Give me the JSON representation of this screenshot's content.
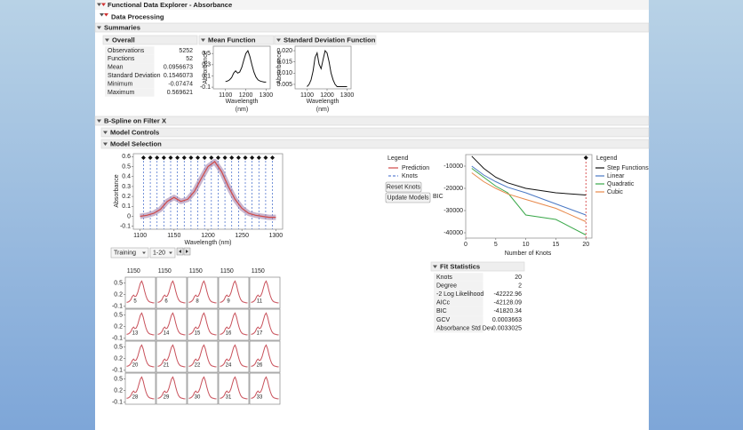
{
  "header": {
    "title": "Functional Data Explorer - Absorbance",
    "data_processing": "Data Processing",
    "summaries": "Summaries",
    "bspline": "B-Spline on Filter X",
    "model_controls": "Model Controls",
    "model_selection": "Model Selection"
  },
  "overall": {
    "title": "Overall",
    "rows": [
      {
        "label": "Observations",
        "value": 5252
      },
      {
        "label": "Functions",
        "value": 52
      },
      {
        "label": "Mean",
        "value": 0.0956673
      },
      {
        "label": "Standard Deviation",
        "value": 0.1546073
      },
      {
        "label": "Minimum",
        "value": -0.07474
      },
      {
        "label": "Maximum",
        "value": 0.569621
      }
    ]
  },
  "mean_function": {
    "title": "Mean Function",
    "y_label": "Absorbance",
    "x_label": "Wavelength",
    "x_unit": "(nm)",
    "xlim": [
      1040,
      1320
    ],
    "ylim": [
      -0.13,
      0.63
    ],
    "xticks": [
      1100,
      1200,
      1300
    ],
    "yticks": [
      -0.1,
      0.1,
      0.3,
      0.5
    ],
    "x": [
      1100,
      1110,
      1120,
      1130,
      1140,
      1150,
      1160,
      1170,
      1180,
      1190,
      1200,
      1210,
      1220,
      1230,
      1240,
      1250,
      1260,
      1270,
      1280,
      1290,
      1300
    ],
    "y": [
      0.0,
      0.01,
      0.03,
      0.07,
      0.15,
      0.19,
      0.15,
      0.17,
      0.25,
      0.38,
      0.5,
      0.55,
      0.45,
      0.3,
      0.17,
      0.08,
      0.03,
      0.01,
      0.0,
      -0.01,
      -0.01
    ]
  },
  "sd_function": {
    "title": "Standard Deviation Function",
    "y_label": "Absorbance",
    "x_label": "Wavelength",
    "x_unit": "(nm)",
    "xlim": [
      1040,
      1320
    ],
    "ylim": [
      0.003,
      0.022
    ],
    "xticks": [
      1100,
      1200,
      1300
    ],
    "yticks": [
      {
        "value": 0.005,
        "label": "0.005"
      },
      {
        "value": 0.01,
        "label": "0.010"
      },
      {
        "value": 0.015,
        "label": "0.015"
      },
      {
        "value": 0.02,
        "label": "0.020"
      }
    ],
    "x": [
      1100,
      1110,
      1120,
      1130,
      1140,
      1150,
      1160,
      1170,
      1180,
      1190,
      1200,
      1210,
      1220,
      1230,
      1240,
      1250,
      1260,
      1270,
      1280,
      1290,
      1300
    ],
    "y": [
      0.004,
      0.005,
      0.007,
      0.011,
      0.017,
      0.019,
      0.014,
      0.012,
      0.016,
      0.02,
      0.019,
      0.015,
      0.01,
      0.007,
      0.005,
      0.004,
      0.004,
      0.004,
      0.004,
      0.004,
      0.004
    ]
  },
  "model_chart": {
    "y_label": "Absorbance",
    "x_label": "Wavelength (nm)",
    "xlim": [
      1090,
      1310
    ],
    "ylim": [
      -0.13,
      0.63
    ],
    "xticks": [
      1100,
      1150,
      1200,
      1250,
      1300
    ],
    "yticks": [
      -0.1,
      0,
      0.1,
      0.2,
      0.3,
      0.4,
      0.5,
      0.6
    ],
    "knots": [
      1105,
      1115,
      1125,
      1135,
      1145,
      1155,
      1165,
      1175,
      1185,
      1195,
      1205,
      1215,
      1225,
      1235,
      1245,
      1255,
      1265,
      1275,
      1285,
      1295
    ],
    "x": [
      1100,
      1110,
      1120,
      1130,
      1140,
      1150,
      1160,
      1170,
      1180,
      1190,
      1200,
      1210,
      1220,
      1230,
      1240,
      1250,
      1260,
      1270,
      1280,
      1290,
      1300
    ],
    "prediction": [
      0.0,
      0.01,
      0.03,
      0.07,
      0.15,
      0.19,
      0.15,
      0.17,
      0.25,
      0.38,
      0.5,
      0.55,
      0.45,
      0.3,
      0.17,
      0.08,
      0.03,
      0.01,
      0.0,
      -0.01,
      -0.01
    ],
    "prediction_color": "#d04a4a",
    "knot_color": "#3a64c8"
  },
  "model_legend": {
    "title": "Legend",
    "prediction": "Prediction",
    "knots": "Knots"
  },
  "buttons": [
    "Reset Knots",
    "Update Models"
  ],
  "controls": [
    "Training",
    "1-20"
  ],
  "bic_chart": {
    "y_label": "BIC",
    "x_label": "Number of Knots",
    "legend_title": "Legend",
    "xlim": [
      0,
      21
    ],
    "ylim": [
      -42400,
      -4800
    ],
    "xticks": [
      0,
      5,
      10,
      15,
      20
    ],
    "yticks": [
      -40000,
      -30000,
      -20000,
      -10000
    ],
    "x": [
      1,
      3,
      5,
      7,
      10,
      15,
      20
    ],
    "selected": 20,
    "series": [
      {
        "name": "Step Functions",
        "color": "#111111",
        "values": [
          -5500,
          -11000,
          -15000,
          -17500,
          -20000,
          -22000,
          -23000
        ]
      },
      {
        "name": "Linear",
        "color": "#4a78c4",
        "values": [
          -10000,
          -14000,
          -17000,
          -19500,
          -22000,
          -27000,
          -32000
        ]
      },
      {
        "name": "Quadratic",
        "color": "#3aa84a",
        "values": [
          -11000,
          -15000,
          -19000,
          -22000,
          -32000,
          -34000,
          -41000
        ]
      },
      {
        "name": "Cubic",
        "color": "#e8884a",
        "values": [
          -13000,
          -17000,
          -20000,
          -22500,
          -25000,
          -29000,
          -35000
        ]
      }
    ]
  },
  "small_multiples": {
    "xlim": [
      1090,
      1310
    ],
    "ylim": [
      -0.15,
      0.65
    ],
    "xticks": [
      1150
    ],
    "yticks": [
      -0.1,
      0.2,
      0.5
    ],
    "panels": [
      "5",
      "6",
      "8",
      "9",
      "11",
      "13",
      "14",
      "15",
      "16",
      "17",
      "20",
      "21",
      "22",
      "24",
      "26",
      "28",
      "29",
      "30",
      "31",
      "33"
    ],
    "x": [
      1100,
      1110,
      1120,
      1130,
      1140,
      1150,
      1160,
      1170,
      1180,
      1190,
      1200,
      1210,
      1220,
      1230,
      1240,
      1250,
      1260,
      1270,
      1280,
      1290,
      1300
    ],
    "y": [
      0.0,
      0.01,
      0.03,
      0.07,
      0.15,
      0.19,
      0.15,
      0.17,
      0.25,
      0.38,
      0.5,
      0.55,
      0.45,
      0.3,
      0.17,
      0.08,
      0.03,
      0.01,
      0.0,
      -0.01,
      -0.01
    ]
  },
  "fit_statistics": {
    "title": "Fit Statistics",
    "rows": [
      {
        "label": "Knots",
        "value": 20
      },
      {
        "label": "Degree",
        "value": 2
      },
      {
        "label": "-2 Log Likelihood",
        "value": -42222.96
      },
      {
        "label": "AICc",
        "value": -42128.09
      },
      {
        "label": "BIC",
        "value": -41820.34
      },
      {
        "label": "GCV",
        "value": 0.0003663
      },
      {
        "label": "Absorbance Std Dev",
        "value": 0.0033025
      }
    ]
  }
}
